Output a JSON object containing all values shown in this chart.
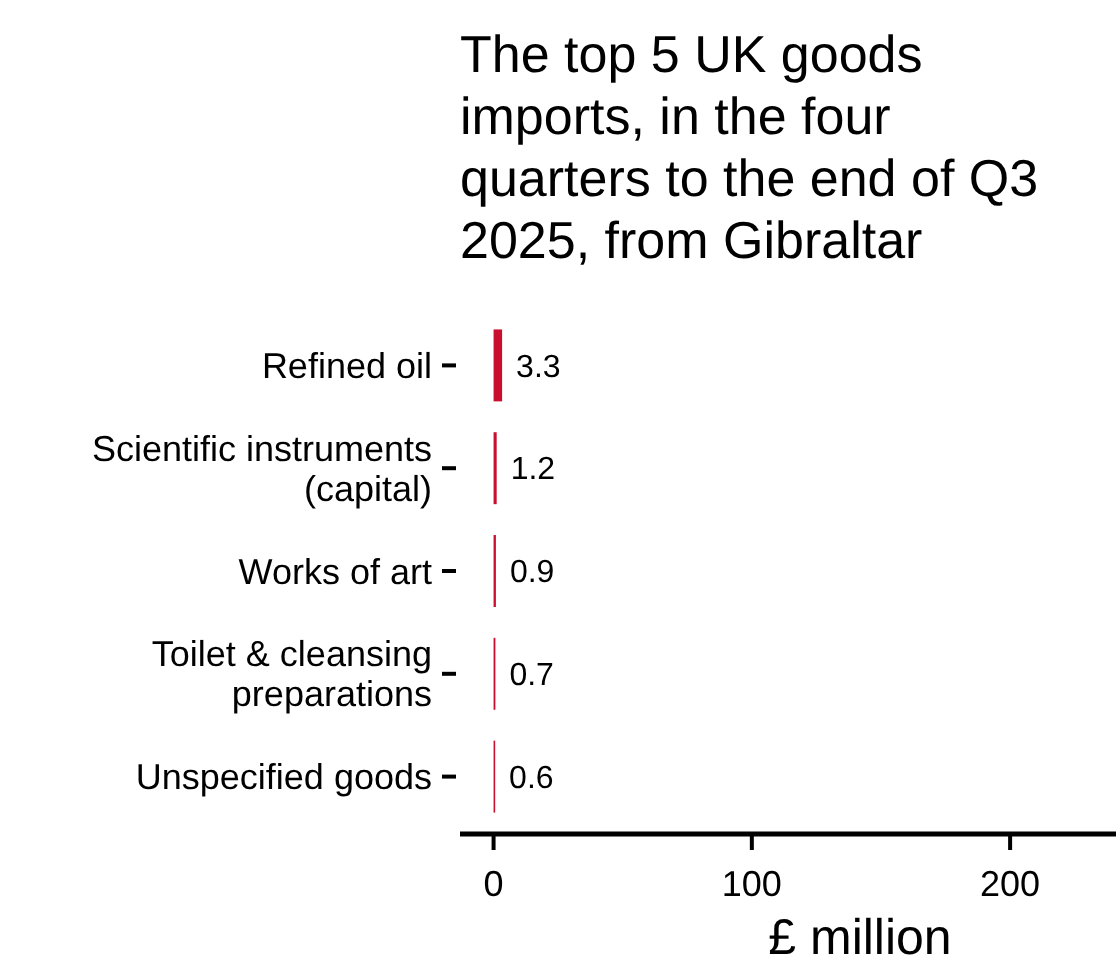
{
  "chart_data": {
    "type": "bar",
    "orientation": "horizontal",
    "title": "The top 5 UK goods imports, in the four quarters to the end of Q3 2025, from Gibraltar",
    "xlabel": "£ million",
    "categories": [
      "Refined oil",
      "Scientific instruments (capital)",
      "Works of art",
      "Toilet & cleansing preparations",
      "Unspecified goods"
    ],
    "values": [
      3.3,
      1.2,
      0.9,
      0.7,
      0.6
    ],
    "color": "#c8102e",
    "data_labels": true,
    "xlim": [
      -13,
      241
    ],
    "xticks": [
      0,
      100,
      200
    ],
    "grid": false
  }
}
